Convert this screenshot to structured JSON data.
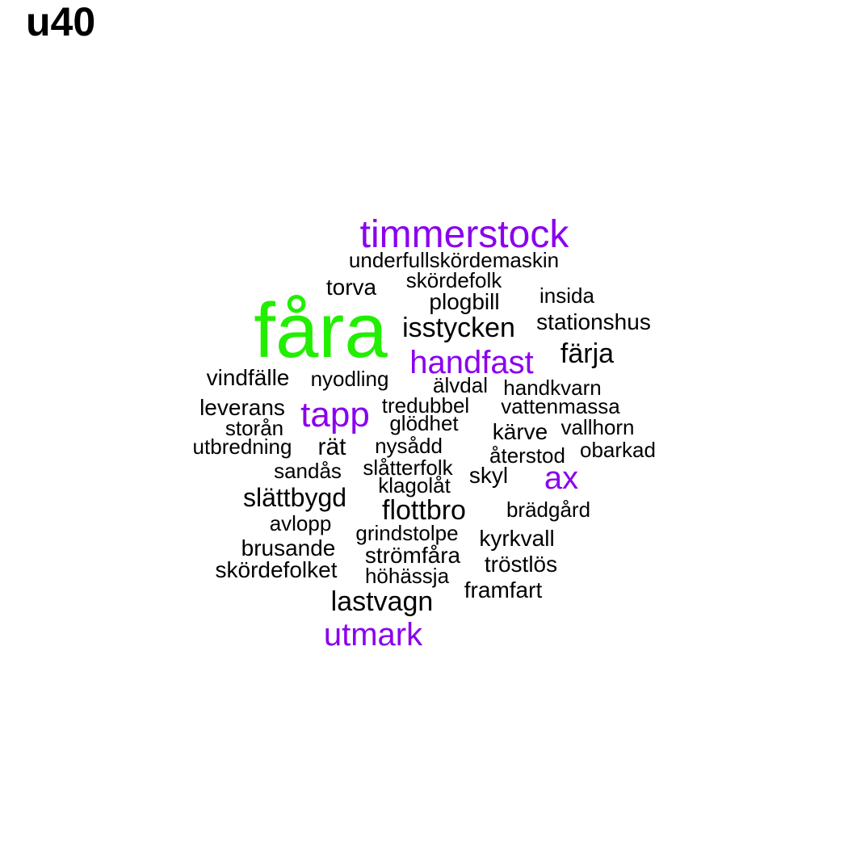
{
  "title": "u40",
  "colors": {
    "highlight_top": "#22ee00",
    "highlight_mid": "#8a00ee",
    "regular": "#000000"
  },
  "words": [
    {
      "text": "fåra",
      "weight": 1,
      "color": "#22ee00"
    },
    {
      "text": "timmerstock",
      "weight": 0.6,
      "color": "#8a00ee"
    },
    {
      "text": "handfast",
      "weight": 0.6,
      "color": "#8a00ee"
    },
    {
      "text": "tapp",
      "weight": 0.6,
      "color": "#8a00ee"
    },
    {
      "text": "ax",
      "weight": 0.6,
      "color": "#8a00ee"
    },
    {
      "text": "utmark",
      "weight": 0.6,
      "color": "#8a00ee"
    },
    {
      "text": "färja",
      "weight": 0.45,
      "color": "#000000"
    },
    {
      "text": "isstycken",
      "weight": 0.45,
      "color": "#000000"
    },
    {
      "text": "flottbro",
      "weight": 0.45,
      "color": "#000000"
    },
    {
      "text": "lastvagn",
      "weight": 0.45,
      "color": "#000000"
    },
    {
      "text": "slättbygd",
      "weight": 0.45,
      "color": "#000000"
    },
    {
      "text": "underfullskördemaskin",
      "weight": 0.3,
      "color": "#000000"
    },
    {
      "text": "skördefolk",
      "weight": 0.3,
      "color": "#000000"
    },
    {
      "text": "torva",
      "weight": 0.3,
      "color": "#000000"
    },
    {
      "text": "insida",
      "weight": 0.3,
      "color": "#000000"
    },
    {
      "text": "plogbill",
      "weight": 0.3,
      "color": "#000000"
    },
    {
      "text": "stationshus",
      "weight": 0.3,
      "color": "#000000"
    },
    {
      "text": "vindfälle",
      "weight": 0.3,
      "color": "#000000"
    },
    {
      "text": "nyodling",
      "weight": 0.3,
      "color": "#000000"
    },
    {
      "text": "älvdal",
      "weight": 0.3,
      "color": "#000000"
    },
    {
      "text": "handkvarn",
      "weight": 0.3,
      "color": "#000000"
    },
    {
      "text": "leverans",
      "weight": 0.3,
      "color": "#000000"
    },
    {
      "text": "tredubbel",
      "weight": 0.3,
      "color": "#000000"
    },
    {
      "text": "vattenmassa",
      "weight": 0.3,
      "color": "#000000"
    },
    {
      "text": "storån",
      "weight": 0.3,
      "color": "#000000"
    },
    {
      "text": "glödhet",
      "weight": 0.3,
      "color": "#000000"
    },
    {
      "text": "vallhorn",
      "weight": 0.3,
      "color": "#000000"
    },
    {
      "text": "kärve",
      "weight": 0.3,
      "color": "#000000"
    },
    {
      "text": "utbredning",
      "weight": 0.3,
      "color": "#000000"
    },
    {
      "text": "rät",
      "weight": 0.3,
      "color": "#000000"
    },
    {
      "text": "nysådd",
      "weight": 0.3,
      "color": "#000000"
    },
    {
      "text": "obarkad",
      "weight": 0.3,
      "color": "#000000"
    },
    {
      "text": "återstod",
      "weight": 0.3,
      "color": "#000000"
    },
    {
      "text": "sandås",
      "weight": 0.3,
      "color": "#000000"
    },
    {
      "text": "slåtterfolk",
      "weight": 0.3,
      "color": "#000000"
    },
    {
      "text": "skyl",
      "weight": 0.3,
      "color": "#000000"
    },
    {
      "text": "klagolåt",
      "weight": 0.3,
      "color": "#000000"
    },
    {
      "text": "brädgård",
      "weight": 0.3,
      "color": "#000000"
    },
    {
      "text": "avlopp",
      "weight": 0.3,
      "color": "#000000"
    },
    {
      "text": "grindstolpe",
      "weight": 0.3,
      "color": "#000000"
    },
    {
      "text": "kyrkvall",
      "weight": 0.3,
      "color": "#000000"
    },
    {
      "text": "brusande",
      "weight": 0.3,
      "color": "#000000"
    },
    {
      "text": "strömfåra",
      "weight": 0.3,
      "color": "#000000"
    },
    {
      "text": "tröstlös",
      "weight": 0.3,
      "color": "#000000"
    },
    {
      "text": "skördefolket",
      "weight": 0.3,
      "color": "#000000"
    },
    {
      "text": "höhässja",
      "weight": 0.3,
      "color": "#000000"
    },
    {
      "text": "framfart",
      "weight": 0.3,
      "color": "#000000"
    }
  ]
}
